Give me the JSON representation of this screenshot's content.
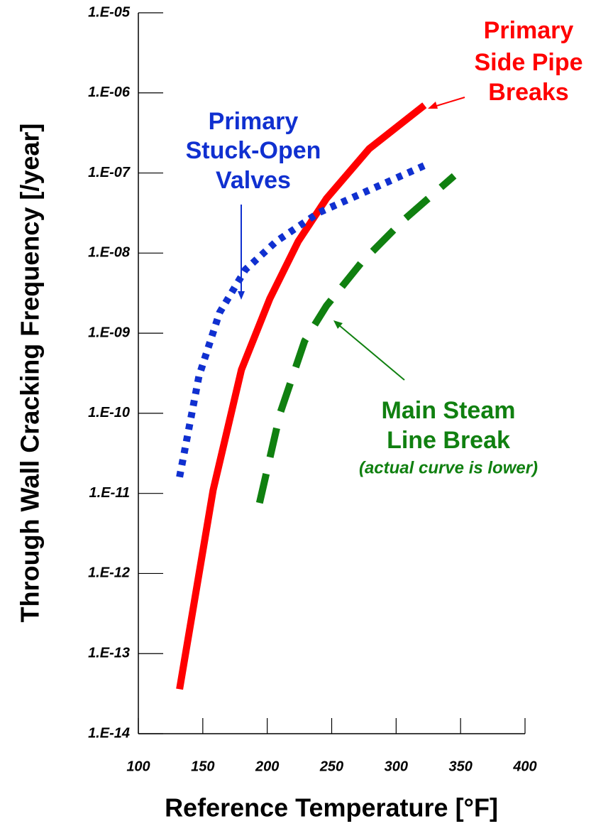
{
  "chart_data": {
    "type": "line",
    "y_log": true,
    "xlabel": "Reference Temperature  [°F]",
    "ylabel": "Through Wall Cracking Frequency [/year]",
    "xlim": [
      100,
      400
    ],
    "xticks": [
      100,
      150,
      200,
      250,
      300,
      350,
      400
    ],
    "ylim": [
      1e-14,
      1e-05
    ],
    "yticks": [
      {
        "value": 1e-14,
        "label": "1.E-14"
      },
      {
        "value": 1e-13,
        "label": "1.E-13"
      },
      {
        "value": 1e-12,
        "label": "1.E-12"
      },
      {
        "value": 1e-11,
        "label": "1.E-11"
      },
      {
        "value": 1e-10,
        "label": "1.E-10"
      },
      {
        "value": 1e-09,
        "label": "1.E-09"
      },
      {
        "value": 1e-08,
        "label": "1.E-08"
      },
      {
        "value": 1e-07,
        "label": "1.E-07"
      },
      {
        "value": 1e-06,
        "label": "1.E-06"
      },
      {
        "value": 1e-05,
        "label": "1.E-05"
      }
    ],
    "series": [
      {
        "color": "#ff0000",
        "style": "solid",
        "x": [
          132,
          158,
          180,
          202,
          224,
          246,
          279,
          322
        ],
        "values": [
          3.6e-14,
          1.1e-11,
          3.5e-10,
          2.7e-09,
          1.4e-08,
          4.8e-08,
          2e-07,
          7e-07
        ]
      },
      {
        "color": "#1030d0",
        "style": "dotted",
        "x": [
          132,
          147,
          163,
          183,
          207,
          240,
          279,
          323
        ],
        "values": [
          1.6e-11,
          2.9e-10,
          1.8e-09,
          6.2e-09,
          1.4e-08,
          3.2e-08,
          6.1e-08,
          1.26e-07
        ]
      },
      {
        "color": "#108010",
        "style": "dashed",
        "x": [
          194,
          210,
          229,
          246,
          273,
          306,
          345
        ],
        "values": [
          7.6e-12,
          1e-10,
          8e-10,
          2.2e-09,
          7.6e-09,
          2.6e-08,
          9.2e-08
        ]
      }
    ],
    "annotations": [
      {
        "lines": [
          "Primary",
          "Side Pipe",
          "Breaks"
        ]
      },
      {
        "lines": [
          "Primary",
          "Stuck-Open",
          "Valves"
        ]
      },
      {
        "lines": [
          "Main Steam",
          "Line Break"
        ],
        "note": "(actual curve is lower)"
      }
    ]
  }
}
